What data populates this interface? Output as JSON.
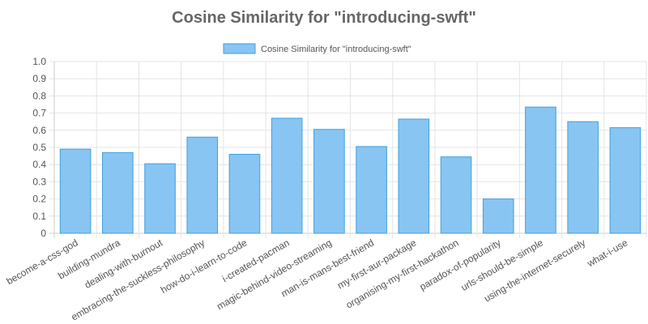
{
  "chart_data": {
    "type": "bar",
    "title": "Cosine Similarity for \"introducing-swft\"",
    "legend_position": "top",
    "grid": true,
    "ylim": [
      0,
      1.0
    ],
    "y_ticks": [
      "1.0",
      "0.9",
      "0.8",
      "0.7",
      "0.6",
      "0.5",
      "0.4",
      "0.3",
      "0.2",
      "0.1",
      "0"
    ],
    "categories": [
      "become-a-css-god",
      "building-mundra",
      "dealing-with-burnout",
      "embracing-the-suckless-philosophy",
      "how-do-i-learn-to-code",
      "i-created-pacman",
      "magic-behind-video-streaming",
      "man-is-mans-best-friend",
      "my-first-aur-package",
      "organising-my-first-hackathon",
      "paradox-of-popularity",
      "urls-should-be-simple",
      "using-the-internet-securely",
      "what-i-use"
    ],
    "series": [
      {
        "name": "Cosine Similarity for \"introducing-swft\"",
        "values": [
          0.49,
          0.47,
          0.405,
          0.56,
          0.46,
          0.67,
          0.605,
          0.505,
          0.665,
          0.445,
          0.2,
          0.735,
          0.65,
          0.615
        ]
      }
    ],
    "colors": {
      "bar_fill": "#88c5f2",
      "bar_stroke": "#3fa0e0"
    }
  }
}
